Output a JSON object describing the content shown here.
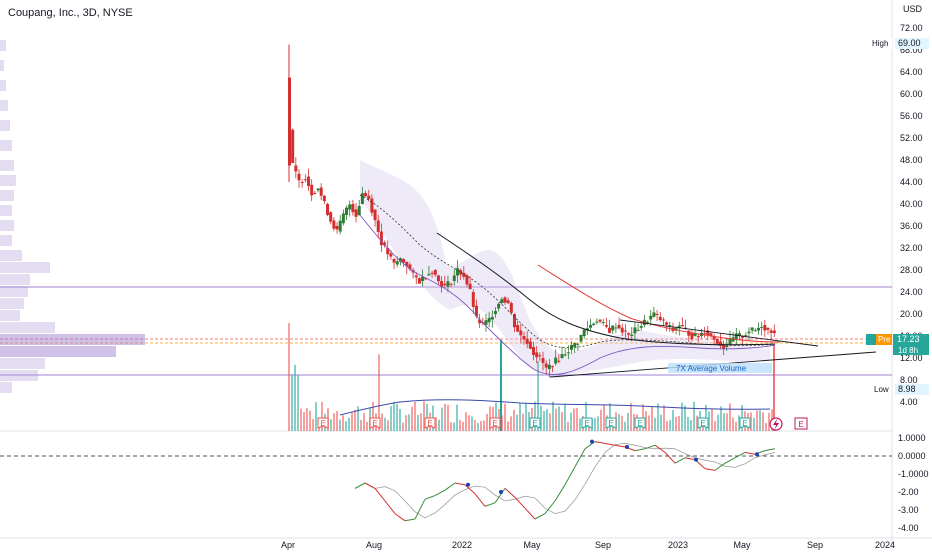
{
  "header": {
    "title": "Coupang, Inc., 3D, NYSE",
    "currency": "USD"
  },
  "colors": {
    "up": "#26a69a",
    "down": "#ef5350",
    "upCandle": "#2e7d32",
    "downCandle": "#d32f2f",
    "profile": "#b39ddb",
    "profileStrong": "#9575cd",
    "osc": "#d32f2f",
    "oscUp": "#388e3c",
    "signal": "#9e9e9e",
    "price_badge": "#26a69a",
    "pre_badge": "#ff9800"
  },
  "icons": {
    "earnings": "earnings-flag-icon",
    "lightning": "lightning-icon"
  },
  "chart_data": [
    {
      "type": "candlestick",
      "ylim": [
        2,
        74
      ],
      "y_ticks": [
        "72.00",
        "68.00",
        "64.00",
        "60.00",
        "56.00",
        "52.00",
        "48.00",
        "44.00",
        "40.00",
        "36.00",
        "32.00",
        "28.00",
        "24.00",
        "20.00",
        "16.00",
        "12.00",
        "8.00",
        "4.00"
      ],
      "x_ticks": [
        "Apr",
        "Aug",
        "2022",
        "May",
        "Sep",
        "2023",
        "May",
        "Sep",
        "2024"
      ],
      "high": {
        "label": "High",
        "value": "69.00"
      },
      "low": {
        "label": "Low",
        "value": "8.98"
      },
      "last_price": "17.23",
      "pre_label": "Pre",
      "timer": "1d 8h",
      "annotation": "7X Average Volume",
      "price_path": [
        [
          0,
          60
        ],
        [
          1,
          47
        ],
        [
          2,
          44
        ],
        [
          3,
          45
        ],
        [
          4,
          42
        ],
        [
          5,
          43
        ],
        [
          6,
          40
        ],
        [
          7,
          37
        ],
        [
          8,
          35
        ],
        [
          9,
          38
        ],
        [
          10,
          40
        ],
        [
          11,
          38
        ],
        [
          12,
          42
        ],
        [
          13,
          41
        ],
        [
          14,
          37
        ],
        [
          15,
          33
        ],
        [
          16,
          31
        ],
        [
          17,
          29
        ],
        [
          18,
          30
        ],
        [
          19,
          29
        ],
        [
          20,
          27
        ],
        [
          21,
          26
        ],
        [
          22,
          27
        ],
        [
          23,
          28
        ],
        [
          24,
          26
        ],
        [
          25,
          25
        ],
        [
          26,
          26
        ],
        [
          27,
          28
        ],
        [
          28,
          27
        ],
        [
          29,
          24
        ],
        [
          30,
          19
        ],
        [
          31,
          18
        ],
        [
          32,
          19
        ],
        [
          33,
          21
        ],
        [
          34,
          23
        ],
        [
          35,
          22
        ],
        [
          36,
          18
        ],
        [
          37,
          16
        ],
        [
          38,
          15
        ],
        [
          39,
          13
        ],
        [
          40,
          12
        ],
        [
          41,
          10
        ],
        [
          42,
          11
        ],
        [
          43,
          12
        ],
        [
          44,
          13
        ],
        [
          45,
          14
        ],
        [
          46,
          15
        ],
        [
          47,
          17
        ],
        [
          48,
          18
        ],
        [
          49,
          19
        ],
        [
          50,
          18
        ],
        [
          51,
          17
        ],
        [
          52,
          18
        ],
        [
          53,
          17
        ],
        [
          54,
          16
        ],
        [
          55,
          17
        ],
        [
          56,
          18
        ],
        [
          57,
          19
        ],
        [
          58,
          20
        ],
        [
          59,
          19
        ],
        [
          60,
          18
        ],
        [
          61,
          17
        ],
        [
          62,
          18
        ],
        [
          63,
          17
        ],
        [
          64,
          16
        ],
        [
          65,
          16
        ],
        [
          66,
          17
        ],
        [
          67,
          16
        ],
        [
          68,
          15
        ],
        [
          69,
          14
        ],
        [
          70,
          15
        ],
        [
          71,
          16
        ],
        [
          72,
          16
        ],
        [
          73,
          17
        ],
        [
          74,
          17
        ],
        [
          75,
          18
        ],
        [
          76,
          17
        ],
        [
          77,
          17
        ]
      ]
    },
    {
      "type": "line",
      "name": "oscillator",
      "ylim": [
        -4.3,
        1.3
      ],
      "y_ticks": [
        "1.0000",
        "0.0000",
        "-1.0000",
        "-2.00",
        "-3.00",
        "-4.00"
      ]
    }
  ]
}
